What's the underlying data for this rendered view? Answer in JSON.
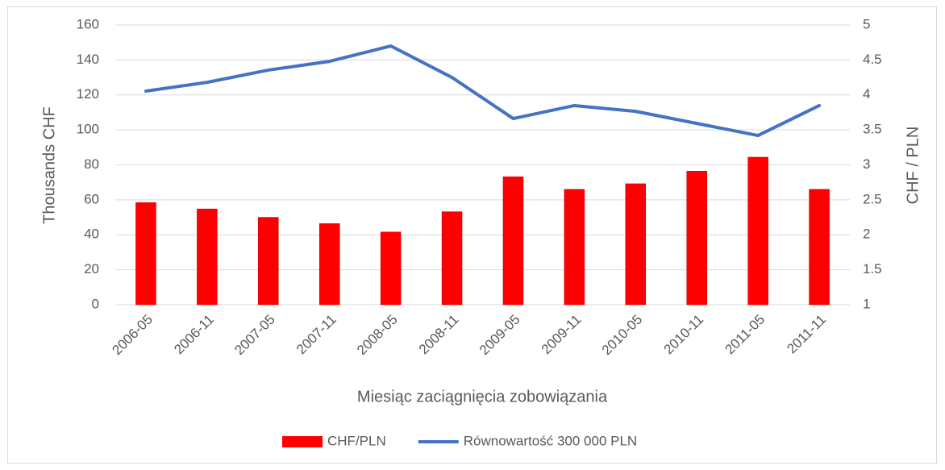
{
  "chart_data": {
    "type": "bar-line",
    "categories": [
      "2006-05",
      "2006-11",
      "2007-05",
      "2007-11",
      "2008-05",
      "2008-11",
      "2009-05",
      "2009-11",
      "2010-05",
      "2010-11",
      "2011-05",
      "2011-11"
    ],
    "series": [
      {
        "name": "CHF/PLN",
        "type": "bar",
        "axis": "y2",
        "color": "#ff0000",
        "values": [
          2.46,
          2.37,
          2.25,
          2.16,
          2.04,
          2.33,
          2.83,
          2.65,
          2.73,
          2.91,
          3.11,
          2.65
        ]
      },
      {
        "name": "Równowartość 300 000 PLN",
        "type": "line",
        "axis": "y",
        "color": "#4472c4",
        "values": [
          122.2,
          127.2,
          134.2,
          139.2,
          148.0,
          130.0,
          106.5,
          113.9,
          110.6,
          103.7,
          96.8,
          113.9
        ]
      }
    ],
    "xlabel": "Miesiąc zaciągnięcia zobowiązania",
    "ylabel": "Thousands CHF",
    "y2label": "CHF / PLN",
    "ylim": [
      0,
      160
    ],
    "yticks": [
      0,
      20,
      40,
      60,
      80,
      100,
      120,
      140,
      160
    ],
    "y2lim": [
      1,
      5
    ],
    "y2ticks": [
      1,
      1.5,
      2,
      2.5,
      3,
      3.5,
      4,
      4.5,
      5
    ],
    "grid": true,
    "legend": "bottom"
  }
}
